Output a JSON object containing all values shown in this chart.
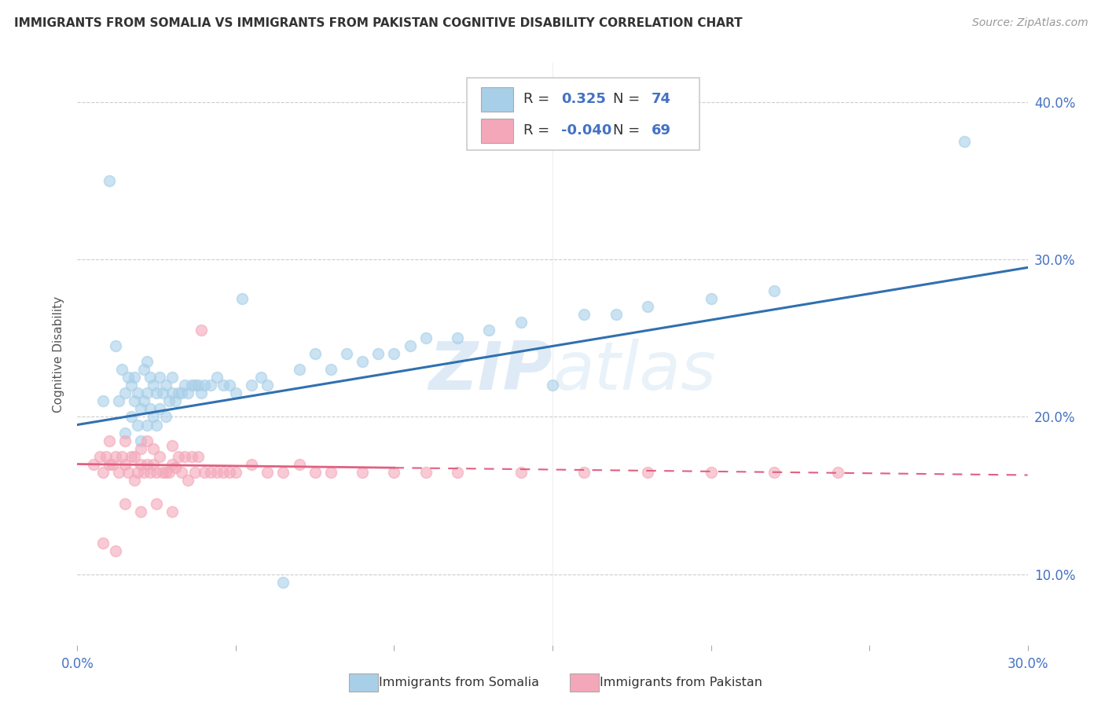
{
  "title": "IMMIGRANTS FROM SOMALIA VS IMMIGRANTS FROM PAKISTAN COGNITIVE DISABILITY CORRELATION CHART",
  "source": "Source: ZipAtlas.com",
  "ylabel": "Cognitive Disability",
  "xlim": [
    0.0,
    0.3
  ],
  "ylim": [
    0.055,
    0.425
  ],
  "yticks": [
    0.1,
    0.2,
    0.3,
    0.4
  ],
  "right_ytick_labels": [
    "10.0%",
    "20.0%",
    "30.0%",
    "40.0%"
  ],
  "somalia_R": 0.325,
  "somalia_N": 74,
  "pakistan_R": -0.04,
  "pakistan_N": 69,
  "somalia_color": "#a8cfe8",
  "pakistan_color": "#f4a7b9",
  "somalia_line_color": "#3070b0",
  "pakistan_line_color": "#e06080",
  "legend_somalia_label": "Immigrants from Somalia",
  "legend_pakistan_label": "Immigrants from Pakistan",
  "watermark": "ZIPatlas",
  "somalia_scatter_x": [
    0.008,
    0.01,
    0.012,
    0.013,
    0.014,
    0.015,
    0.015,
    0.016,
    0.017,
    0.017,
    0.018,
    0.018,
    0.019,
    0.019,
    0.02,
    0.02,
    0.021,
    0.021,
    0.022,
    0.022,
    0.022,
    0.023,
    0.023,
    0.024,
    0.024,
    0.025,
    0.025,
    0.026,
    0.026,
    0.027,
    0.028,
    0.028,
    0.029,
    0.03,
    0.03,
    0.031,
    0.032,
    0.033,
    0.034,
    0.035,
    0.036,
    0.037,
    0.038,
    0.039,
    0.04,
    0.042,
    0.044,
    0.046,
    0.048,
    0.05,
    0.052,
    0.055,
    0.058,
    0.06,
    0.065,
    0.07,
    0.075,
    0.08,
    0.085,
    0.09,
    0.095,
    0.1,
    0.105,
    0.11,
    0.12,
    0.13,
    0.14,
    0.15,
    0.16,
    0.17,
    0.18,
    0.2,
    0.22,
    0.28
  ],
  "somalia_scatter_y": [
    0.21,
    0.35,
    0.245,
    0.21,
    0.23,
    0.19,
    0.215,
    0.225,
    0.2,
    0.22,
    0.21,
    0.225,
    0.195,
    0.215,
    0.185,
    0.205,
    0.21,
    0.23,
    0.195,
    0.215,
    0.235,
    0.205,
    0.225,
    0.2,
    0.22,
    0.195,
    0.215,
    0.205,
    0.225,
    0.215,
    0.2,
    0.22,
    0.21,
    0.215,
    0.225,
    0.21,
    0.215,
    0.215,
    0.22,
    0.215,
    0.22,
    0.22,
    0.22,
    0.215,
    0.22,
    0.22,
    0.225,
    0.22,
    0.22,
    0.215,
    0.275,
    0.22,
    0.225,
    0.22,
    0.095,
    0.23,
    0.24,
    0.23,
    0.24,
    0.235,
    0.24,
    0.24,
    0.245,
    0.25,
    0.25,
    0.255,
    0.26,
    0.22,
    0.265,
    0.265,
    0.27,
    0.275,
    0.28,
    0.375
  ],
  "pakistan_scatter_x": [
    0.005,
    0.007,
    0.008,
    0.009,
    0.01,
    0.01,
    0.011,
    0.012,
    0.013,
    0.014,
    0.015,
    0.015,
    0.016,
    0.017,
    0.018,
    0.018,
    0.019,
    0.02,
    0.02,
    0.021,
    0.022,
    0.022,
    0.023,
    0.024,
    0.024,
    0.025,
    0.026,
    0.027,
    0.028,
    0.029,
    0.03,
    0.03,
    0.031,
    0.032,
    0.033,
    0.034,
    0.035,
    0.036,
    0.037,
    0.038,
    0.039,
    0.04,
    0.042,
    0.044,
    0.046,
    0.048,
    0.05,
    0.055,
    0.06,
    0.065,
    0.07,
    0.075,
    0.08,
    0.09,
    0.1,
    0.11,
    0.12,
    0.14,
    0.16,
    0.18,
    0.2,
    0.22,
    0.24,
    0.008,
    0.012,
    0.015,
    0.02,
    0.025,
    0.03
  ],
  "pakistan_scatter_y": [
    0.17,
    0.175,
    0.165,
    0.175,
    0.17,
    0.185,
    0.17,
    0.175,
    0.165,
    0.175,
    0.17,
    0.185,
    0.165,
    0.175,
    0.16,
    0.175,
    0.165,
    0.17,
    0.18,
    0.165,
    0.17,
    0.185,
    0.165,
    0.17,
    0.18,
    0.165,
    0.175,
    0.165,
    0.165,
    0.165,
    0.17,
    0.182,
    0.168,
    0.175,
    0.165,
    0.175,
    0.16,
    0.175,
    0.165,
    0.175,
    0.255,
    0.165,
    0.165,
    0.165,
    0.165,
    0.165,
    0.165,
    0.17,
    0.165,
    0.165,
    0.17,
    0.165,
    0.165,
    0.165,
    0.165,
    0.165,
    0.165,
    0.165,
    0.165,
    0.165,
    0.165,
    0.165,
    0.165,
    0.12,
    0.115,
    0.145,
    0.14,
    0.145,
    0.14
  ]
}
